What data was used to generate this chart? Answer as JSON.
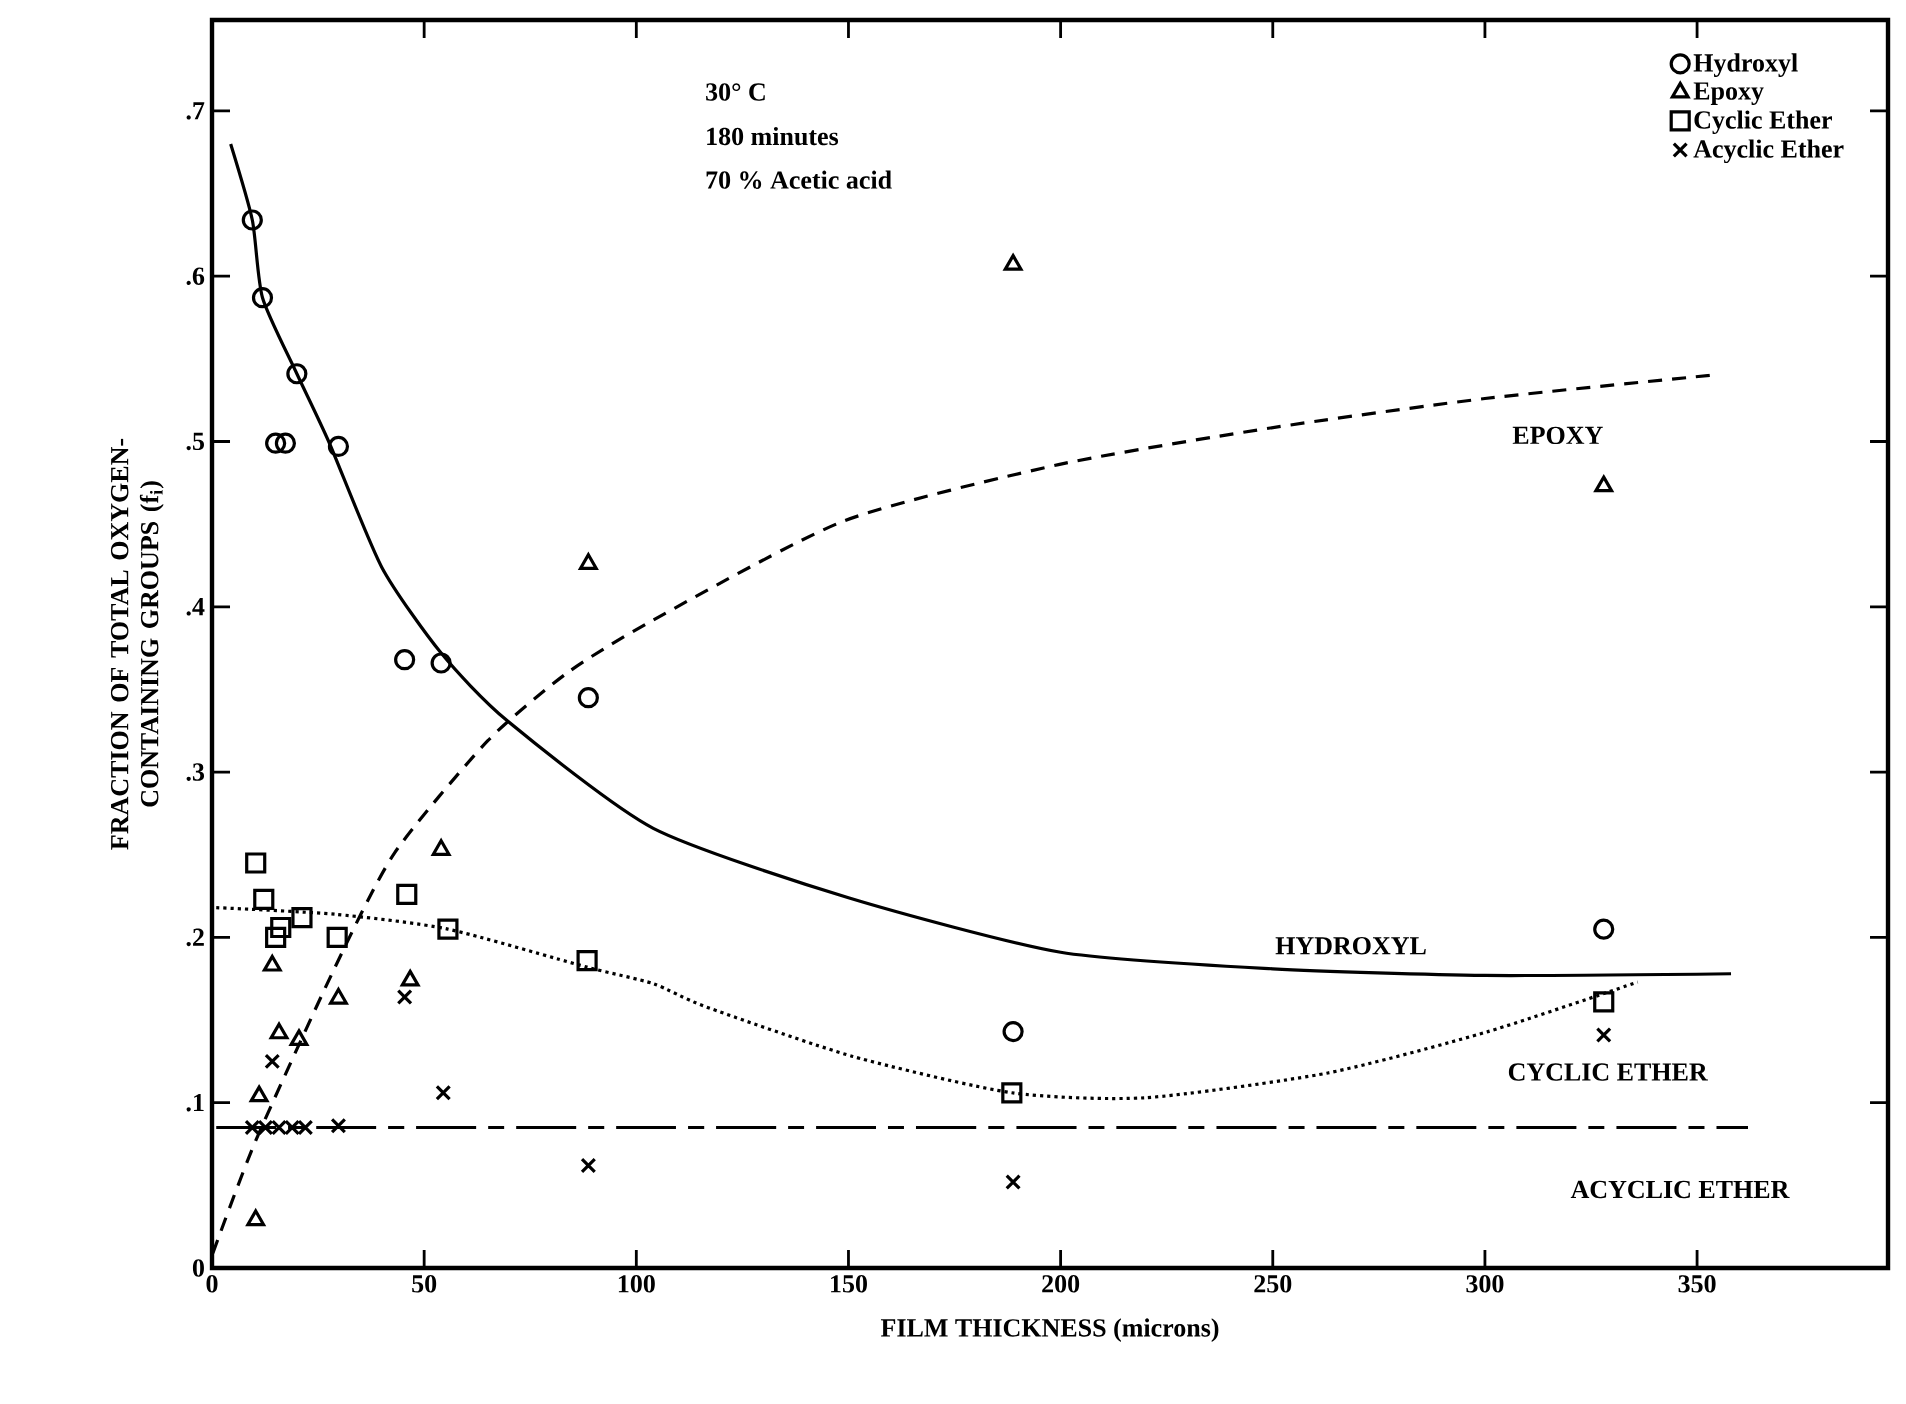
{
  "chart_data": {
    "type": "scatter",
    "xlabel": "FILM THICKNESS (microns)",
    "ylabel": "FRACTION OF TOTAL OXYGEN-CONTAINING GROUPS (f$_{i}$)",
    "xlim": [
      0,
      395
    ],
    "ylim": [
      0,
      0.755
    ],
    "xticks": [
      0,
      50,
      100,
      150,
      200,
      250,
      300,
      350
    ],
    "yticks": [
      0,
      {
        "value": 0.1,
        "label": ".1"
      },
      {
        "value": 0.2,
        "label": ".2"
      },
      {
        "value": 0.3,
        "label": ".3"
      },
      {
        "value": 0.4,
        "label": ".4"
      },
      {
        "value": 0.5,
        "label": ".5"
      },
      {
        "value": 0.6,
        "label": ".6"
      },
      {
        "value": 0.7,
        "label": ".7"
      }
    ],
    "grid": false,
    "legend": "top right",
    "annotations": [
      "30° C",
      "180 minutes",
      "70 % Acetic acid"
    ],
    "series": [
      {
        "name": "Hydroxyl",
        "marker": "circle",
        "color": "#000000",
        "x": [
          9.5,
          11.9,
          20,
          15,
          17.3,
          29.8,
          45.4,
          54,
          88.7,
          188.8,
          328
        ],
        "values": [
          0.634,
          0.587,
          0.541,
          0.499,
          0.499,
          0.497,
          0.368,
          0.366,
          0.345,
          0.143,
          0.205
        ]
      },
      {
        "name": "Epoxy",
        "marker": "triangle",
        "color": "#000000",
        "x": [
          88.7,
          188.8,
          328,
          54,
          14.2,
          29.8,
          46.7,
          15.8,
          20.5,
          11.1,
          10.3
        ],
        "values": [
          0.426,
          0.607,
          0.473,
          0.253,
          0.183,
          0.163,
          0.174,
          0.142,
          0.138,
          0.104,
          0.029
        ]
      },
      {
        "name": "Cyclic Ether",
        "marker": "square",
        "color": "#000000",
        "x": [
          10.3,
          12.2,
          15,
          16.2,
          21.2,
          29.5,
          45.9,
          55.6,
          88.4,
          188.5,
          328
        ],
        "values": [
          0.245,
          0.223,
          0.2,
          0.206,
          0.212,
          0.2,
          0.226,
          0.205,
          0.186,
          0.106,
          0.161
        ]
      },
      {
        "name": "Acyclic Ether",
        "marker": "cross",
        "color": "#000000",
        "x": [
          14.2,
          45.4,
          54.5,
          88.7,
          188.8,
          328,
          9.5,
          12.6,
          15.8,
          18.9,
          22,
          29.8
        ],
        "values": [
          0.125,
          0.164,
          0.106,
          0.062,
          0.052,
          0.141,
          0.085,
          0.085,
          0.085,
          0.085,
          0.085,
          0.086
        ]
      },
      {
        "name": "HYDROXYL",
        "type": "line",
        "line_style": "solid",
        "marker": "none",
        "color": "#000000",
        "x": [
          4.4,
          9.5,
          11.9,
          20,
          27.5,
          40,
          54,
          69.6,
          104,
          150,
          200,
          250,
          300,
          358
        ],
        "values": [
          0.68,
          0.634,
          0.587,
          0.541,
          0.5,
          0.424,
          0.372,
          0.331,
          0.266,
          0.224,
          0.191,
          0.181,
          0.177,
          0.178
        ]
      },
      {
        "name": "EPOXY",
        "type": "line",
        "line_style": "dashed",
        "marker": "none",
        "color": "#000000",
        "x": [
          0.2,
          10.3,
          29,
          43,
          65,
          83.7,
          104,
          149,
          199.5,
          249,
          300,
          353
        ],
        "values": [
          0.009,
          0.077,
          0.182,
          0.251,
          0.319,
          0.36,
          0.392,
          0.452,
          0.486,
          0.508,
          0.526,
          0.54
        ]
      },
      {
        "name": "CYCLIC ETHER",
        "type": "line",
        "line_style": "dotted",
        "marker": "none",
        "color": "#000000",
        "x": [
          1,
          29,
          55.6,
          88.4,
          104,
          116.4,
          151,
          188.5,
          220,
          263,
          300.7,
          336
        ],
        "values": [
          0.218,
          0.214,
          0.205,
          0.182,
          0.172,
          0.158,
          0.128,
          0.106,
          0.103,
          0.118,
          0.143,
          0.173
        ]
      },
      {
        "name": "ACYCLIC ETHER",
        "type": "line",
        "line_style": "dashdot",
        "marker": "none",
        "color": "#000000",
        "x": [
          1,
          362
        ],
        "values": [
          0.085,
          0.085
        ]
      }
    ]
  }
}
